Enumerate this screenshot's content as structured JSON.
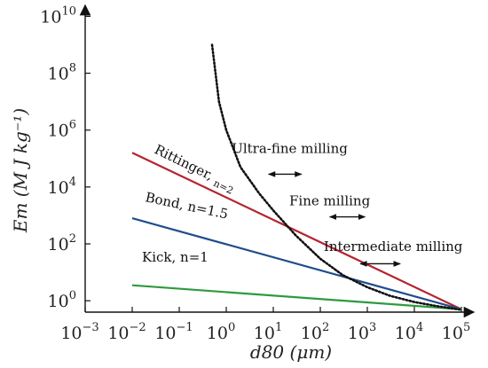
{
  "chart_data": {
    "type": "line",
    "title": "",
    "xlabel": "d80 (μm)",
    "ylabel": "Em (M J kg⁻¹)",
    "xscale": "log",
    "yscale": "log",
    "xlim_exp": [
      -3,
      5
    ],
    "ylim_exp": [
      -0.4,
      10.2
    ],
    "x_ticks": [
      {
        "base": "10",
        "exp": "−3"
      },
      {
        "base": "10",
        "exp": "−2"
      },
      {
        "base": "10",
        "exp": "−1"
      },
      {
        "base": "10",
        "exp": "0"
      },
      {
        "base": "10",
        "exp": "1"
      },
      {
        "base": "10",
        "exp": "2"
      },
      {
        "base": "10",
        "exp": "3"
      },
      {
        "base": "10",
        "exp": "4"
      },
      {
        "base": "10",
        "exp": "5"
      }
    ],
    "y_ticks": [
      {
        "base": "10",
        "exp": "0"
      },
      {
        "base": "10",
        "exp": "2"
      },
      {
        "base": "10",
        "exp": "4"
      },
      {
        "base": "10",
        "exp": "6"
      },
      {
        "base": "10",
        "exp": "8"
      },
      {
        "base": "10",
        "exp": "10"
      }
    ],
    "series": [
      {
        "name": "Rittinger, n=2",
        "label_main": "Rittinger,",
        "label_sub": "n=2",
        "color": "#b5232e",
        "style": "solid",
        "points": [
          [
            0.01,
            160000.0
          ],
          [
            100000,
            0.5
          ]
        ]
      },
      {
        "name": "Bond, n=1.5",
        "label_main": "Bond, n=1.5",
        "color": "#1f4e8c",
        "style": "solid",
        "points": [
          [
            0.01,
            800
          ],
          [
            100000,
            0.5
          ]
        ]
      },
      {
        "name": "Kick, n=1",
        "label_main": "Kick, n=1",
        "color": "#2e9a3e",
        "style": "solid",
        "points": [
          [
            0.01,
            3.5
          ],
          [
            100000,
            0.5
          ]
        ]
      },
      {
        "name": "",
        "color": "#111111",
        "style": "dotted",
        "points": [
          [
            0.5,
            1000000000.0
          ],
          [
            0.7,
            10000000.0
          ],
          [
            1,
            1000000.0
          ],
          [
            2,
            50000.0
          ],
          [
            5,
            6000
          ],
          [
            10,
            1500
          ],
          [
            30,
            200
          ],
          [
            100,
            30
          ],
          [
            300,
            8
          ],
          [
            1000,
            3
          ],
          [
            3000,
            1.5
          ],
          [
            10000,
            0.9
          ],
          [
            30000,
            0.65
          ],
          [
            100000,
            0.48
          ]
        ]
      }
    ],
    "annotations": [
      {
        "text": "Ultra-fine milling",
        "x_exp": 1.35,
        "y_exp": 5.2,
        "arrow_from": 0.9,
        "arrow_to": 1.6,
        "arrow_y_exp": 4.45
      },
      {
        "text": "Fine milling",
        "x_exp": 2.2,
        "y_exp": 3.35,
        "arrow_from": 2.2,
        "arrow_to": 2.95,
        "arrow_y_exp": 2.95
      },
      {
        "text": "Intermediate milling",
        "x_exp": 3.55,
        "y_exp": 1.75,
        "arrow_from": 2.85,
        "arrow_to": 3.7,
        "arrow_y_exp": 1.3
      }
    ],
    "grid": false,
    "legend": "none"
  }
}
